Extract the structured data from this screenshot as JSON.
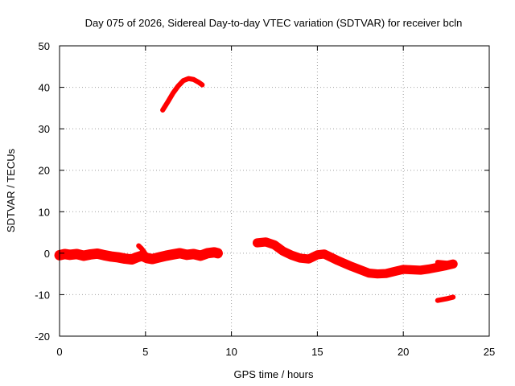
{
  "chart_data": {
    "type": "scatter",
    "title": "Day 075 of 2026, Sidereal Day-to-day VTEC variation (SDTVAR) for receiver bcln",
    "xlabel": "GPS time / hours",
    "ylabel": "SDTVAR / TECUs",
    "xlim": [
      0,
      25
    ],
    "ylim": [
      -20,
      50
    ],
    "xticks": [
      0,
      5,
      10,
      15,
      20,
      25
    ],
    "yticks": [
      -20,
      -10,
      0,
      10,
      20,
      30,
      40,
      50
    ],
    "grid": true,
    "color": "#ff0000",
    "series": [
      {
        "name": "segment-1",
        "thickness_tecu": 2.5,
        "points": [
          [
            0.0,
            -0.5
          ],
          [
            0.3,
            -0.2
          ],
          [
            0.6,
            -0.4
          ],
          [
            1.0,
            -0.2
          ],
          [
            1.4,
            -0.6
          ],
          [
            1.8,
            -0.3
          ],
          [
            2.2,
            -0.1
          ],
          [
            2.6,
            -0.5
          ],
          [
            3.0,
            -0.8
          ],
          [
            3.4,
            -1.0
          ],
          [
            3.8,
            -1.3
          ],
          [
            4.2,
            -1.5
          ],
          [
            4.5,
            -1.0
          ],
          [
            4.8,
            -0.6
          ],
          [
            5.1,
            -1.2
          ],
          [
            5.4,
            -1.4
          ],
          [
            5.8,
            -1.0
          ],
          [
            6.2,
            -0.6
          ],
          [
            6.6,
            -0.3
          ],
          [
            7.0,
            0.0
          ],
          [
            7.4,
            -0.4
          ],
          [
            7.8,
            -0.2
          ],
          [
            8.2,
            -0.6
          ],
          [
            8.6,
            0.0
          ],
          [
            9.0,
            0.2
          ],
          [
            9.2,
            0.0
          ]
        ]
      },
      {
        "name": "segment-1-spike",
        "thickness_tecu": 1.2,
        "points": [
          [
            4.6,
            1.8
          ],
          [
            4.75,
            1.2
          ],
          [
            4.9,
            0.4
          ],
          [
            5.05,
            -0.6
          ]
        ]
      },
      {
        "name": "segment-2",
        "thickness_tecu": 1.2,
        "points": [
          [
            6.0,
            34.5
          ],
          [
            6.3,
            36.5
          ],
          [
            6.6,
            38.6
          ],
          [
            6.9,
            40.3
          ],
          [
            7.2,
            41.6
          ],
          [
            7.5,
            42.1
          ],
          [
            7.8,
            41.9
          ],
          [
            8.1,
            41.2
          ],
          [
            8.3,
            40.6
          ]
        ]
      },
      {
        "name": "segment-3",
        "thickness_tecu": 2.2,
        "points": [
          [
            11.5,
            2.5
          ],
          [
            12.0,
            2.7
          ],
          [
            12.5,
            2.0
          ],
          [
            13.0,
            0.5
          ],
          [
            13.5,
            -0.5
          ],
          [
            14.0,
            -1.2
          ],
          [
            14.5,
            -1.4
          ],
          [
            15.0,
            -0.4
          ],
          [
            15.4,
            -0.2
          ],
          [
            15.8,
            -1.0
          ],
          [
            16.2,
            -1.8
          ],
          [
            16.6,
            -2.5
          ],
          [
            17.0,
            -3.2
          ],
          [
            17.5,
            -4.0
          ],
          [
            18.0,
            -4.8
          ],
          [
            18.5,
            -5.0
          ],
          [
            19.0,
            -4.9
          ],
          [
            19.5,
            -4.4
          ],
          [
            20.0,
            -3.9
          ],
          [
            20.5,
            -4.0
          ],
          [
            21.0,
            -4.1
          ],
          [
            21.5,
            -3.8
          ],
          [
            22.0,
            -3.4
          ],
          [
            22.5,
            -3.0
          ],
          [
            22.9,
            -2.6
          ]
        ]
      },
      {
        "name": "segment-3-tail",
        "thickness_tecu": 1.2,
        "points": [
          [
            22.0,
            -2.2
          ],
          [
            22.5,
            -2.4
          ],
          [
            22.8,
            -2.8
          ]
        ]
      },
      {
        "name": "segment-4",
        "thickness_tecu": 1.2,
        "points": [
          [
            22.0,
            -11.4
          ],
          [
            22.5,
            -11.0
          ],
          [
            22.9,
            -10.6
          ]
        ]
      }
    ]
  }
}
